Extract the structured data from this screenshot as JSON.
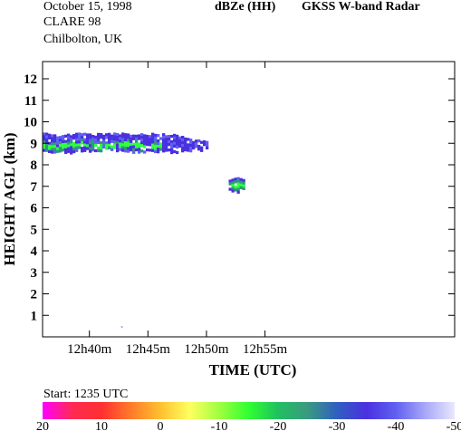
{
  "header": {
    "date": "October 15, 1998",
    "campaign": "CLARE 98",
    "site": "Chilbolton, UK",
    "product": "dBZe (HH)",
    "instrument": "GKSS  W-band Radar"
  },
  "start_label": "Start: 1235 UTC",
  "colors": {
    "scale": [
      "#ff00ff",
      "#ff2a55",
      "#ff3030",
      "#ff7a2a",
      "#ffc030",
      "#ffff60",
      "#a0ff40",
      "#30ff30",
      "#20c060",
      "#3a9a80",
      "#3060c0",
      "#4a30e0",
      "#6060f0",
      "#a8a8f8",
      "#e8e8ff"
    ],
    "cloud_low": "#4a30e0",
    "cloud_mid": "#2e9a7a",
    "cloud_high": "#30ff40"
  },
  "chart_data": {
    "type": "heatmap",
    "title": "dBZe (HH)  GKSS  W-band Radar",
    "xlabel": "TIME (UTC)",
    "ylabel": "HEIGHT AGL (km)",
    "x_ticks": [
      "12h40m",
      "12h45m",
      "12h50m",
      "12h55m"
    ],
    "x_tick_values": [
      40,
      45,
      50,
      55
    ],
    "xlim": [
      36.0,
      71.2
    ],
    "y_ticks": [
      "1",
      "2",
      "3",
      "4",
      "5",
      "6",
      "7",
      "8",
      "9",
      "10",
      "11",
      "12"
    ],
    "y_tick_values": [
      1,
      2,
      3,
      4,
      5,
      6,
      7,
      8,
      9,
      10,
      11,
      12
    ],
    "ylim": [
      0,
      12.8
    ],
    "colorbar": {
      "labels": [
        "20",
        "10",
        "0",
        "-10",
        "-20",
        "-30",
        "-40",
        "-50"
      ],
      "values": [
        20,
        10,
        0,
        -10,
        -20,
        -30,
        -40,
        -50
      ]
    },
    "features": [
      {
        "name": "upper cloud layer",
        "x_start": 36.0,
        "x_end": 50.0,
        "y_bottom": 8.7,
        "y_top": 9.5,
        "core_y": 8.95,
        "reflectivity_min_dBZ": -45,
        "reflectivity_max_dBZ": -25
      },
      {
        "name": "isolated cell",
        "x_start": 51.9,
        "x_end": 53.2,
        "y_bottom": 6.8,
        "y_top": 7.5,
        "core_y": 7.1,
        "reflectivity_min_dBZ": -45,
        "reflectivity_max_dBZ": -20
      }
    ]
  }
}
